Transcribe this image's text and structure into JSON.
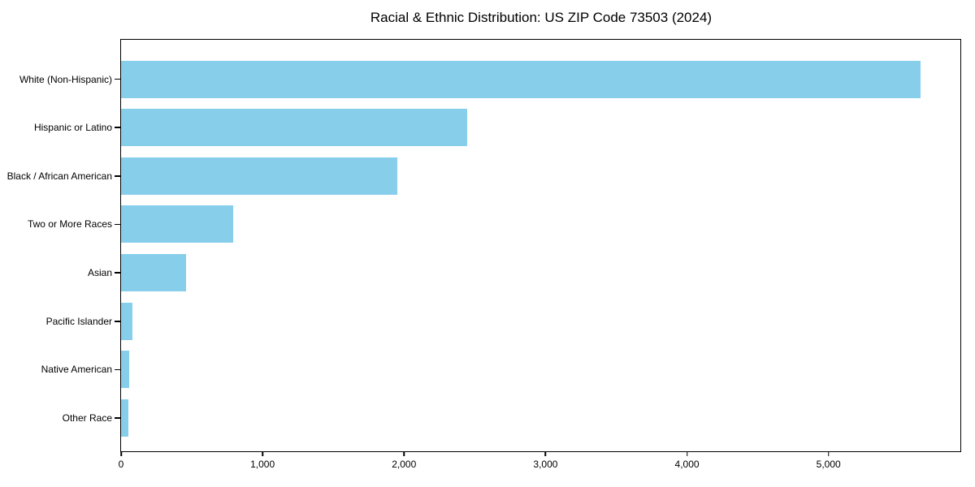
{
  "title": "Racial & Ethnic Distribution: US ZIP Code 73503 (2024)",
  "chart_data": {
    "type": "bar",
    "orientation": "horizontal",
    "title": "Racial & Ethnic Distribution: US ZIP Code 73503 (2024)",
    "xlabel": "",
    "ylabel": "",
    "categories": [
      "White (Non-Hispanic)",
      "Hispanic or Latino",
      "Black / African American",
      "Two or More Races",
      "Asian",
      "Pacific Islander",
      "Native American",
      "Other Race"
    ],
    "values": [
      5650,
      2445,
      1950,
      790,
      460,
      80,
      60,
      50
    ],
    "xlim": [
      0,
      5932
    ],
    "x_ticks": [
      0,
      1000,
      2000,
      3000,
      4000,
      5000
    ],
    "x_tick_labels": [
      "0",
      "1,000",
      "2,000",
      "3,000",
      "4,000",
      "5,000"
    ],
    "bar_color": "#87CEEB",
    "background_color": "#ffffff",
    "spine_color": "#000000",
    "grid": false,
    "legend": null
  }
}
